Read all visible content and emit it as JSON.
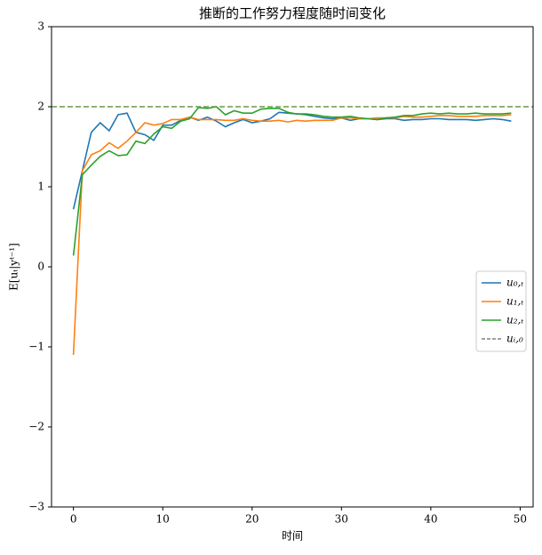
{
  "chart_data": {
    "type": "line",
    "title": "推断的工作努力程度随时间变化",
    "x_label": "时间",
    "y_label": "E[uₜ|yᵗ⁻¹]",
    "x": [
      0,
      1,
      2,
      3,
      4,
      5,
      6,
      7,
      8,
      9,
      10,
      11,
      12,
      13,
      14,
      15,
      16,
      17,
      18,
      19,
      20,
      21,
      22,
      23,
      24,
      25,
      26,
      27,
      28,
      29,
      30,
      31,
      32,
      33,
      34,
      35,
      36,
      37,
      38,
      39,
      40,
      41,
      42,
      43,
      44,
      45,
      46,
      47,
      48,
      49
    ],
    "series": [
      {
        "name": "u₀,ₜ",
        "color": "#1f77b4",
        "values": [
          0.72,
          1.2,
          1.68,
          1.8,
          1.7,
          1.9,
          1.92,
          1.68,
          1.65,
          1.58,
          1.77,
          1.77,
          1.83,
          1.87,
          1.83,
          1.87,
          1.82,
          1.75,
          1.8,
          1.84,
          1.8,
          1.82,
          1.85,
          1.93,
          1.92,
          1.91,
          1.9,
          1.88,
          1.86,
          1.85,
          1.86,
          1.83,
          1.85,
          1.85,
          1.84,
          1.85,
          1.85,
          1.83,
          1.84,
          1.84,
          1.85,
          1.85,
          1.84,
          1.84,
          1.84,
          1.83,
          1.84,
          1.85,
          1.84,
          1.82
        ]
      },
      {
        "name": "u₁,ₜ",
        "color": "#ff7f0e",
        "values": [
          -1.1,
          1.2,
          1.4,
          1.45,
          1.55,
          1.48,
          1.57,
          1.68,
          1.8,
          1.77,
          1.79,
          1.84,
          1.84,
          1.87,
          1.84,
          1.84,
          1.84,
          1.83,
          1.83,
          1.85,
          1.83,
          1.82,
          1.82,
          1.83,
          1.81,
          1.83,
          1.82,
          1.83,
          1.83,
          1.83,
          1.86,
          1.86,
          1.85,
          1.85,
          1.86,
          1.86,
          1.86,
          1.88,
          1.87,
          1.87,
          1.88,
          1.89,
          1.89,
          1.88,
          1.88,
          1.88,
          1.89,
          1.89,
          1.89,
          1.9
        ]
      },
      {
        "name": "u₂,ₜ",
        "color": "#2ca02c",
        "values": [
          0.14,
          1.15,
          1.27,
          1.38,
          1.45,
          1.39,
          1.4,
          1.57,
          1.54,
          1.66,
          1.75,
          1.73,
          1.82,
          1.85,
          1.99,
          1.98,
          2.0,
          1.9,
          1.95,
          1.92,
          1.92,
          1.97,
          1.98,
          1.98,
          1.93,
          1.91,
          1.91,
          1.9,
          1.88,
          1.87,
          1.87,
          1.88,
          1.86,
          1.85,
          1.84,
          1.86,
          1.87,
          1.89,
          1.89,
          1.91,
          1.92,
          1.91,
          1.92,
          1.91,
          1.91,
          1.92,
          1.91,
          1.91,
          1.91,
          1.92
        ]
      }
    ],
    "reference_line": {
      "name": "uᵢ,₀",
      "value": 2,
      "color": "#6b9a45",
      "legend_color": "#808080"
    },
    "xlim": [
      -2.45,
      51.45
    ],
    "ylim": [
      -3,
      3
    ],
    "xticks": [
      0,
      10,
      20,
      30,
      40,
      50
    ],
    "yticks": [
      {
        "value": -3,
        "label": "−3"
      },
      {
        "value": -2,
        "label": "−2"
      },
      {
        "value": -1,
        "label": "−1"
      },
      0,
      1,
      2,
      3
    ],
    "legend": "center right"
  }
}
